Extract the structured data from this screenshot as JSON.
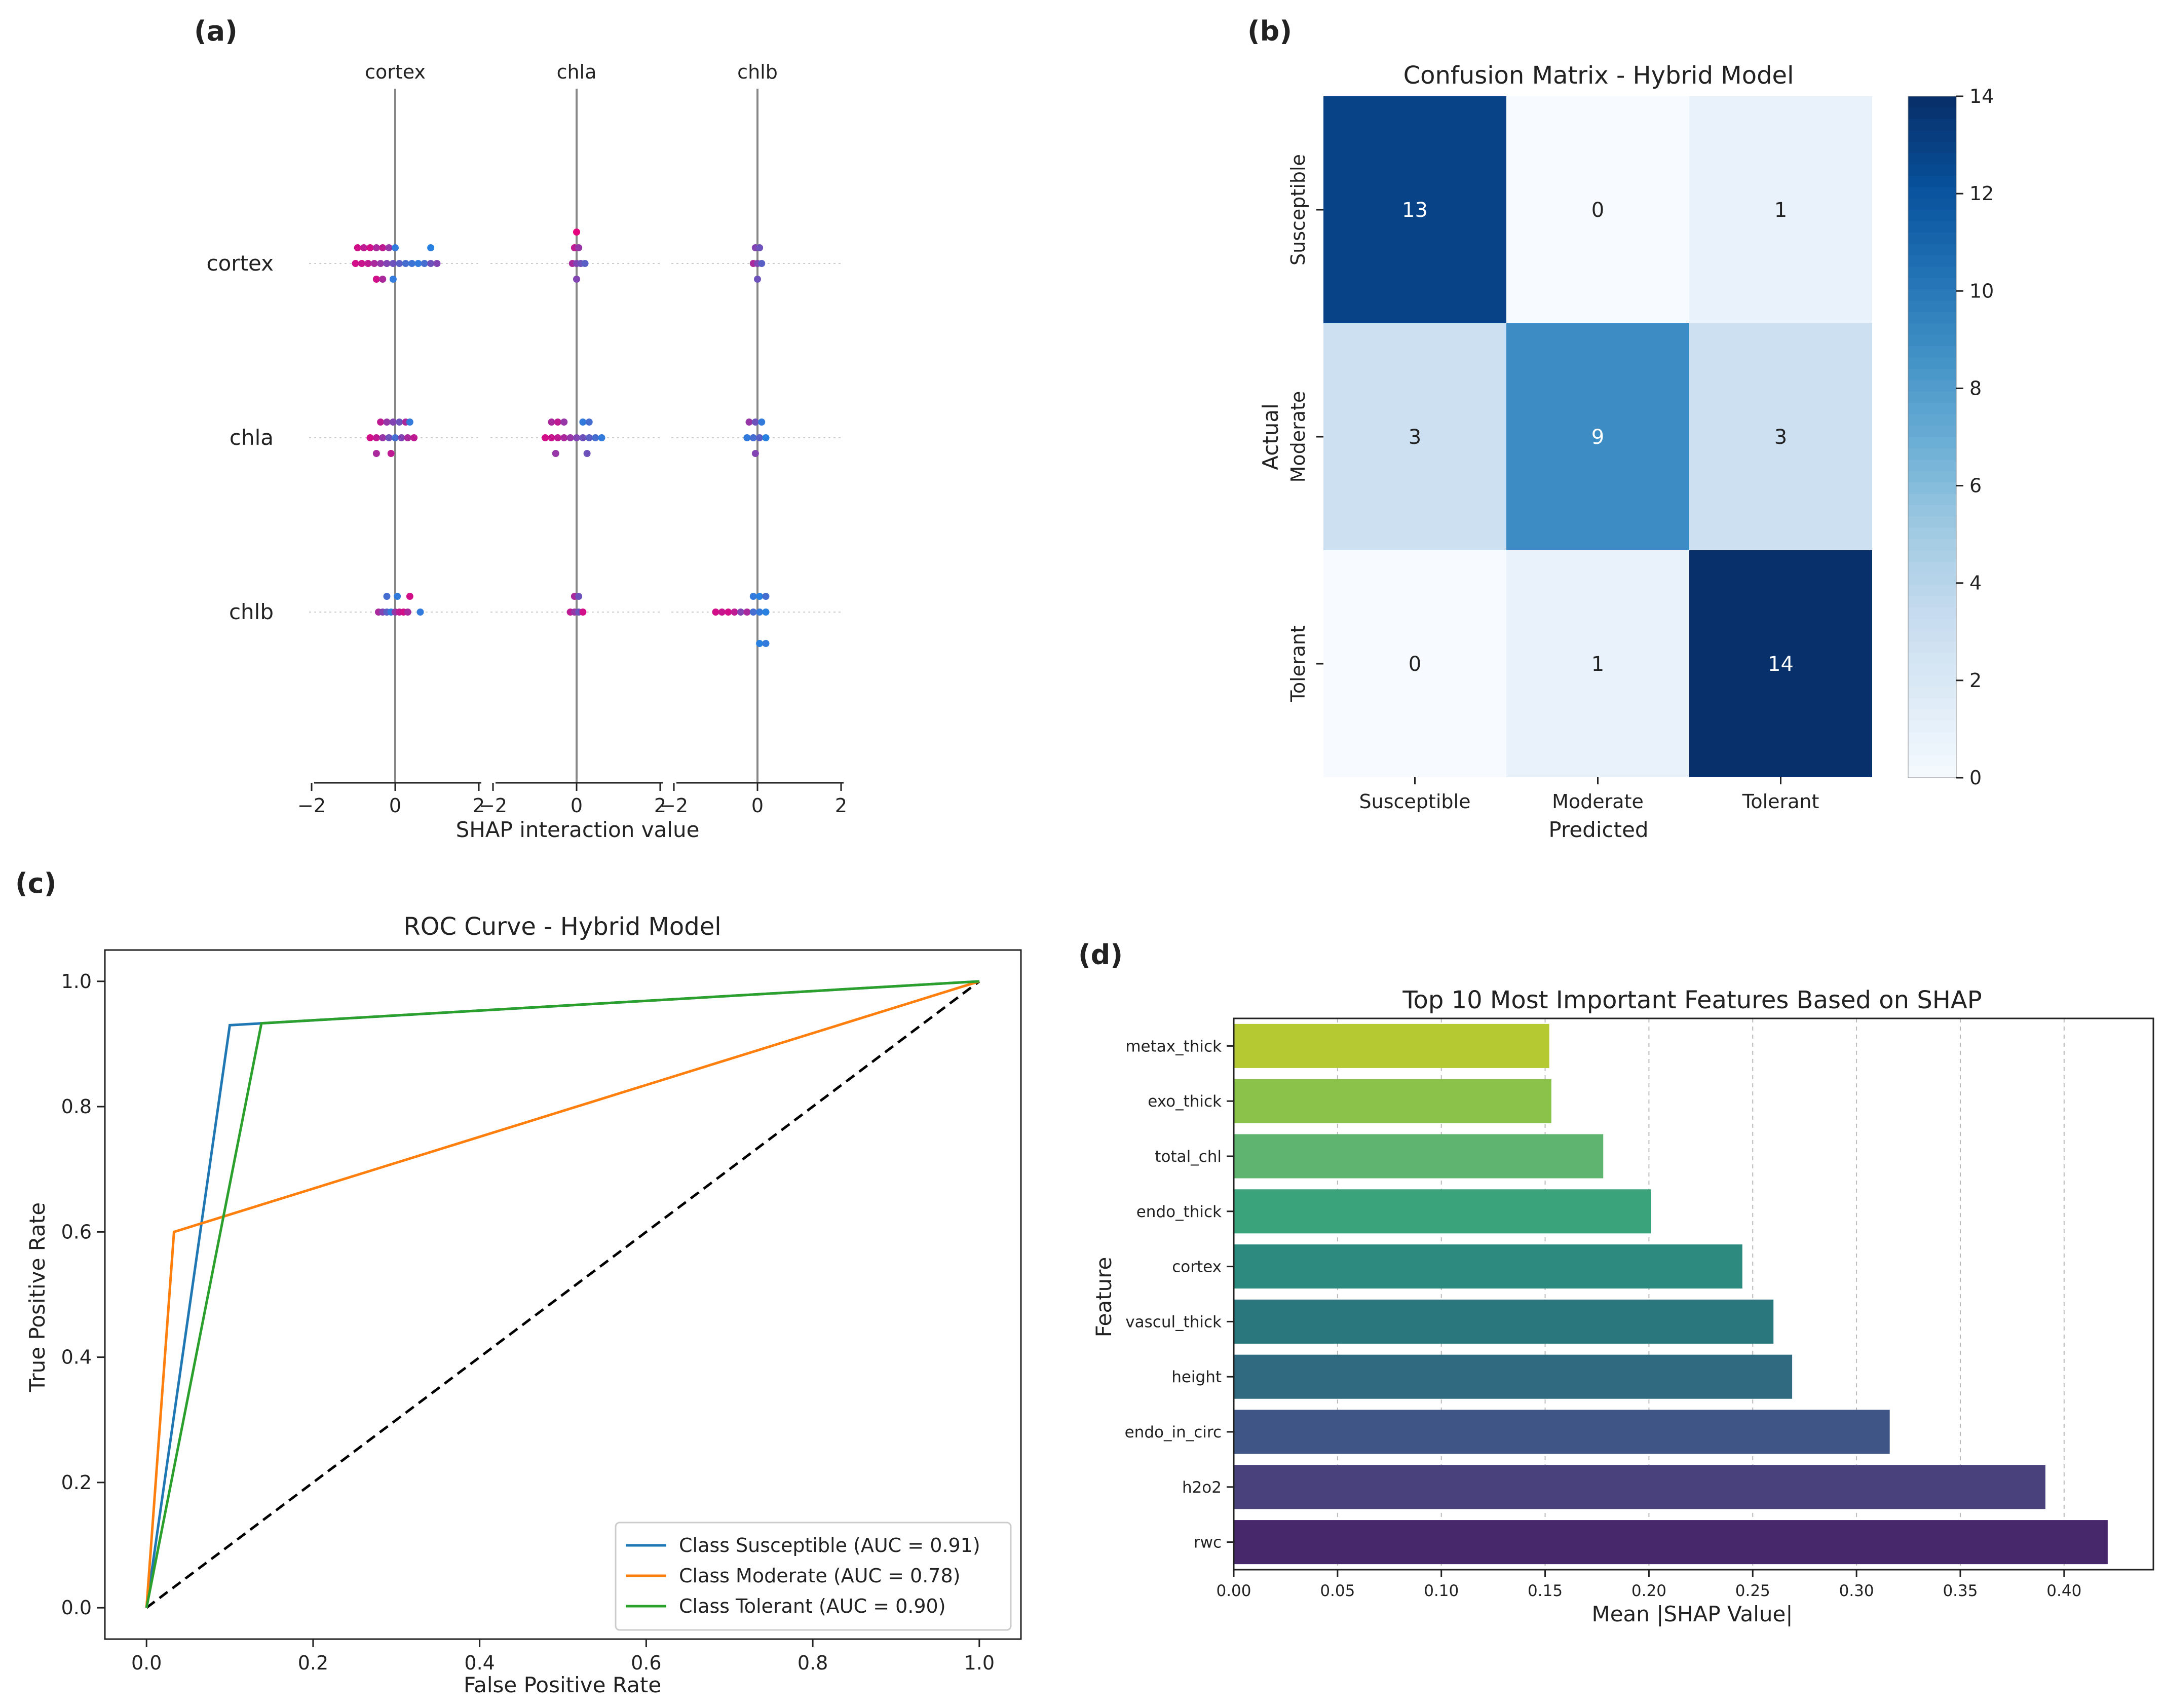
{
  "panel_labels": {
    "a": "(a)",
    "b": "(b)",
    "c": "(c)",
    "d": "(d)"
  },
  "colors": {
    "susceptible": "#1f77b4",
    "moderate": "#ff7f0e",
    "tolerant": "#2ca02c",
    "diagonal": "#000000",
    "dot_low": "#e6007e",
    "dot_high": "#1e88e5"
  },
  "chart_data": [
    {
      "id": "a",
      "type": "scatter",
      "title": "",
      "xlabel": "SHAP interaction value",
      "columns": [
        "cortex",
        "chla",
        "chlb"
      ],
      "rows": [
        "cortex",
        "chla",
        "chlb"
      ],
      "xlim": [
        -2,
        2
      ],
      "xticks": [
        -2,
        0,
        2
      ],
      "xtick_labels": [
        "−2",
        "0",
        "2"
      ],
      "points": [
        {
          "col": 0,
          "row": 0,
          "x": [
            -0.9,
            -0.75,
            -0.6,
            -0.45,
            -0.3,
            -0.15,
            0.0,
            0.85,
            -0.95,
            -0.8,
            -0.65,
            -0.5,
            -0.35,
            -0.2,
            -0.05,
            0.1,
            0.25,
            0.4,
            0.55,
            0.7,
            0.85,
            1.0,
            -0.45,
            -0.3,
            -0.05
          ],
          "y": [
            -1,
            -1,
            -1,
            -1,
            -1,
            -1,
            -1,
            -1,
            0,
            0,
            0,
            0,
            0,
            0,
            0,
            0,
            0,
            0,
            0,
            0,
            0,
            0,
            1,
            1,
            1
          ],
          "v": [
            0.1,
            0.2,
            0.1,
            0.3,
            0.2,
            0.4,
            0.9,
            0.95,
            0.1,
            0.15,
            0.2,
            0.3,
            0.4,
            0.5,
            0.6,
            0.7,
            0.8,
            0.85,
            0.9,
            0.8,
            0.6,
            0.5,
            0.1,
            0.3,
            0.9
          ]
        },
        {
          "col": 0,
          "row": 1,
          "x": [
            -0.35,
            -0.2,
            -0.05,
            0.1,
            0.25,
            0.35,
            -0.6,
            -0.45,
            -0.3,
            -0.15,
            0.0,
            0.15,
            0.3,
            0.45,
            -0.45,
            -0.1
          ],
          "y": [
            -1,
            -1,
            -1,
            -1,
            -1,
            -1,
            0,
            0,
            0,
            0,
            0,
            0,
            0,
            0,
            1,
            1
          ],
          "v": [
            0.2,
            0.4,
            0.5,
            0.6,
            0.3,
            0.9,
            0.1,
            0.2,
            0.4,
            0.6,
            0.8,
            0.5,
            0.3,
            0.2,
            0.3,
            0.2
          ]
        },
        {
          "col": 0,
          "row": 2,
          "x": [
            -0.2,
            0.05,
            0.35,
            -0.4,
            -0.3,
            -0.2,
            -0.1,
            0.0,
            0.1,
            0.2,
            0.3,
            0.6
          ],
          "y": [
            -1,
            -1,
            -1,
            0,
            0,
            0,
            0,
            0,
            0,
            0,
            0,
            0
          ],
          "v": [
            0.8,
            0.9,
            0.1,
            0.3,
            0.5,
            0.7,
            0.9,
            0.4,
            0.2,
            0.1,
            0.3,
            0.9
          ]
        },
        {
          "col": 1,
          "row": 0,
          "x": [
            0.0,
            -0.05,
            0.05,
            -0.1,
            0.0,
            0.1,
            0.2,
            0.0
          ],
          "y": [
            -2,
            -1,
            -1,
            0,
            0,
            0,
            0,
            1
          ],
          "v": [
            0.0,
            0.2,
            0.4,
            0.3,
            0.5,
            0.6,
            0.7,
            0.5
          ]
        },
        {
          "col": 1,
          "row": 1,
          "x": [
            -0.6,
            -0.45,
            -0.3,
            0.15,
            0.3,
            -0.75,
            -0.6,
            -0.45,
            -0.3,
            -0.15,
            0.0,
            0.15,
            0.3,
            0.45,
            0.6,
            -0.5,
            0.25
          ],
          "y": [
            -1,
            -1,
            -1,
            -1,
            -1,
            0,
            0,
            0,
            0,
            0,
            0,
            0,
            0,
            0,
            0,
            1,
            1
          ],
          "v": [
            0.3,
            0.2,
            0.4,
            0.9,
            0.8,
            0.1,
            0.15,
            0.2,
            0.3,
            0.4,
            0.5,
            0.6,
            0.7,
            0.8,
            0.9,
            0.4,
            0.6
          ]
        },
        {
          "col": 1,
          "row": 2,
          "x": [
            -0.05,
            0.05,
            -0.15,
            -0.05,
            0.05,
            0.15
          ],
          "y": [
            -1,
            -1,
            0,
            0,
            0,
            0
          ],
          "v": [
            0.3,
            0.6,
            0.2,
            0.4,
            0.6,
            0.1
          ]
        },
        {
          "col": 2,
          "row": 0,
          "x": [
            -0.05,
            0.05,
            -0.1,
            0.0,
            0.1,
            0.0
          ],
          "y": [
            -1,
            -1,
            0,
            0,
            0,
            1
          ],
          "v": [
            0.5,
            0.6,
            0.3,
            0.5,
            0.7,
            0.6
          ]
        },
        {
          "col": 2,
          "row": 1,
          "x": [
            -0.2,
            -0.05,
            0.1,
            -0.25,
            -0.1,
            0.05,
            0.2,
            -0.05
          ],
          "y": [
            -1,
            -1,
            -1,
            0,
            0,
            0,
            0,
            1
          ],
          "v": [
            0.4,
            0.6,
            0.9,
            0.9,
            0.8,
            0.7,
            0.95,
            0.5
          ]
        },
        {
          "col": 2,
          "row": 2,
          "x": [
            -0.1,
            0.05,
            0.2,
            -1.0,
            -0.85,
            -0.7,
            -0.55,
            -0.4,
            -0.25,
            -0.1,
            0.05,
            0.2,
            0.05,
            0.2
          ],
          "y": [
            -1,
            -1,
            -1,
            0,
            0,
            0,
            0,
            0,
            0,
            0,
            0,
            0,
            2,
            2
          ],
          "v": [
            0.9,
            0.95,
            0.8,
            0.1,
            0.15,
            0.1,
            0.2,
            0.5,
            0.3,
            0.8,
            0.9,
            0.95,
            0.95,
            0.9
          ]
        }
      ]
    },
    {
      "id": "b",
      "type": "heatmap",
      "title": "Confusion Matrix - Hybrid Model",
      "xlabel": "Predicted",
      "ylabel": "Actual",
      "x_categories": [
        "Susceptible",
        "Moderate",
        "Tolerant"
      ],
      "y_categories": [
        "Susceptible",
        "Moderate",
        "Tolerant"
      ],
      "values": [
        [
          13,
          0,
          1
        ],
        [
          3,
          9,
          3
        ],
        [
          0,
          1,
          14
        ]
      ],
      "colorbar": {
        "min": 0,
        "max": 14,
        "ticks": [
          0,
          2,
          4,
          6,
          8,
          10,
          12,
          14
        ]
      }
    },
    {
      "id": "c",
      "type": "line",
      "title": "ROC Curve - Hybrid Model",
      "xlabel": "False Positive Rate",
      "ylabel": "True Positive Rate",
      "xlim": [
        -0.05,
        1.05
      ],
      "ylim": [
        -0.05,
        1.05
      ],
      "xticks": [
        0.0,
        0.2,
        0.4,
        0.6,
        0.8,
        1.0
      ],
      "yticks": [
        0.0,
        0.2,
        0.4,
        0.6,
        0.8,
        1.0
      ],
      "xtick_labels": [
        "0.0",
        "0.2",
        "0.4",
        "0.6",
        "0.8",
        "1.0"
      ],
      "ytick_labels": [
        "0.0",
        "0.2",
        "0.4",
        "0.6",
        "0.8",
        "1.0"
      ],
      "legend_position": "lower-right",
      "series": [
        {
          "name": "Class Susceptible (AUC = 0.91)",
          "x": [
            0.0,
            0.1,
            1.0
          ],
          "y": [
            0.0,
            0.93,
            1.0
          ]
        },
        {
          "name": "Class Moderate (AUC = 0.78)",
          "x": [
            0.0,
            0.033,
            1.0
          ],
          "y": [
            0.0,
            0.6,
            1.0
          ]
        },
        {
          "name": "Class Tolerant (AUC = 0.90)",
          "x": [
            0.0,
            0.138,
            1.0
          ],
          "y": [
            0.0,
            0.933,
            1.0
          ]
        }
      ],
      "diagonal": {
        "x": [
          0,
          1
        ],
        "y": [
          0,
          1
        ]
      }
    },
    {
      "id": "d",
      "type": "bar",
      "orientation": "horizontal",
      "title": "Top 10 Most Important Features Based on SHAP",
      "xlabel": "Mean |SHAP Value|",
      "ylabel": "Feature",
      "categories": [
        "metax_thick",
        "exo_thick",
        "total_chl",
        "endo_thick",
        "cortex",
        "vascul_thick",
        "height",
        "endo_in_circ",
        "h2o2",
        "rwc"
      ],
      "values": [
        0.152,
        0.153,
        0.178,
        0.201,
        0.245,
        0.26,
        0.269,
        0.316,
        0.391,
        0.421
      ],
      "bar_colors": [
        "#b5c933",
        "#8bc34a",
        "#5fb46f",
        "#3ba37b",
        "#2c8a7e",
        "#2b777e",
        "#2f6a80",
        "#3e5585",
        "#48417c",
        "#46286b"
      ],
      "xlim": [
        0,
        0.443
      ],
      "xticks": [
        0.0,
        0.05,
        0.1,
        0.15,
        0.2,
        0.25,
        0.3,
        0.35,
        0.4
      ],
      "xtick_labels": [
        "0.00",
        "0.05",
        "0.10",
        "0.15",
        "0.20",
        "0.25",
        "0.30",
        "0.35",
        "0.40"
      ],
      "grid": "x"
    }
  ]
}
